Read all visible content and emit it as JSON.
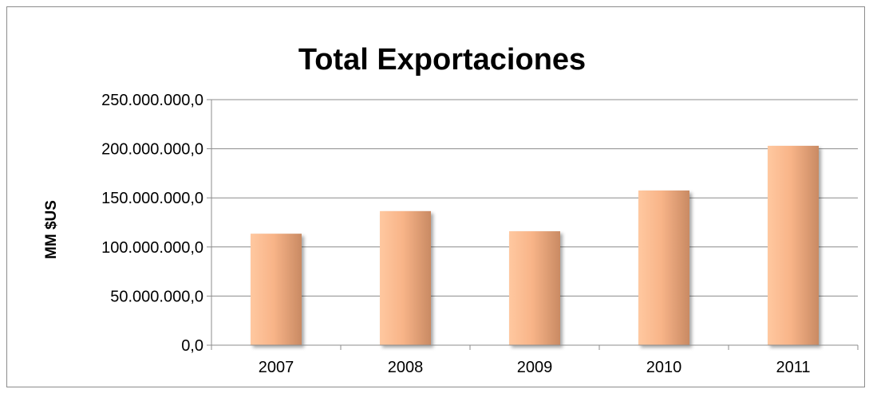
{
  "chart_data": {
    "type": "bar",
    "title": "Total Exportaciones",
    "xlabel": "",
    "ylabel": "MM $US",
    "categories": [
      "2007",
      "2008",
      "2009",
      "2010",
      "2011"
    ],
    "values": [
      113500000,
      136500000,
      116000000,
      157500000,
      203000000
    ],
    "ylim": [
      0,
      250000000
    ],
    "yticks": [
      0,
      50000000,
      100000000,
      150000000,
      200000000,
      250000000
    ],
    "ytick_labels": [
      "0,0",
      "50.000.000,0",
      "100.000.000,0",
      "150.000.000,0",
      "200.000.000,0",
      "250.000.000,0"
    ],
    "grid": true,
    "legend": "none",
    "colors": {
      "bar_light": "#ffc8a0",
      "bar_mid": "#f8b488",
      "bar_dark": "#c98a63",
      "gridline": "#8c8c8c",
      "axis": "#8c8c8c"
    }
  }
}
